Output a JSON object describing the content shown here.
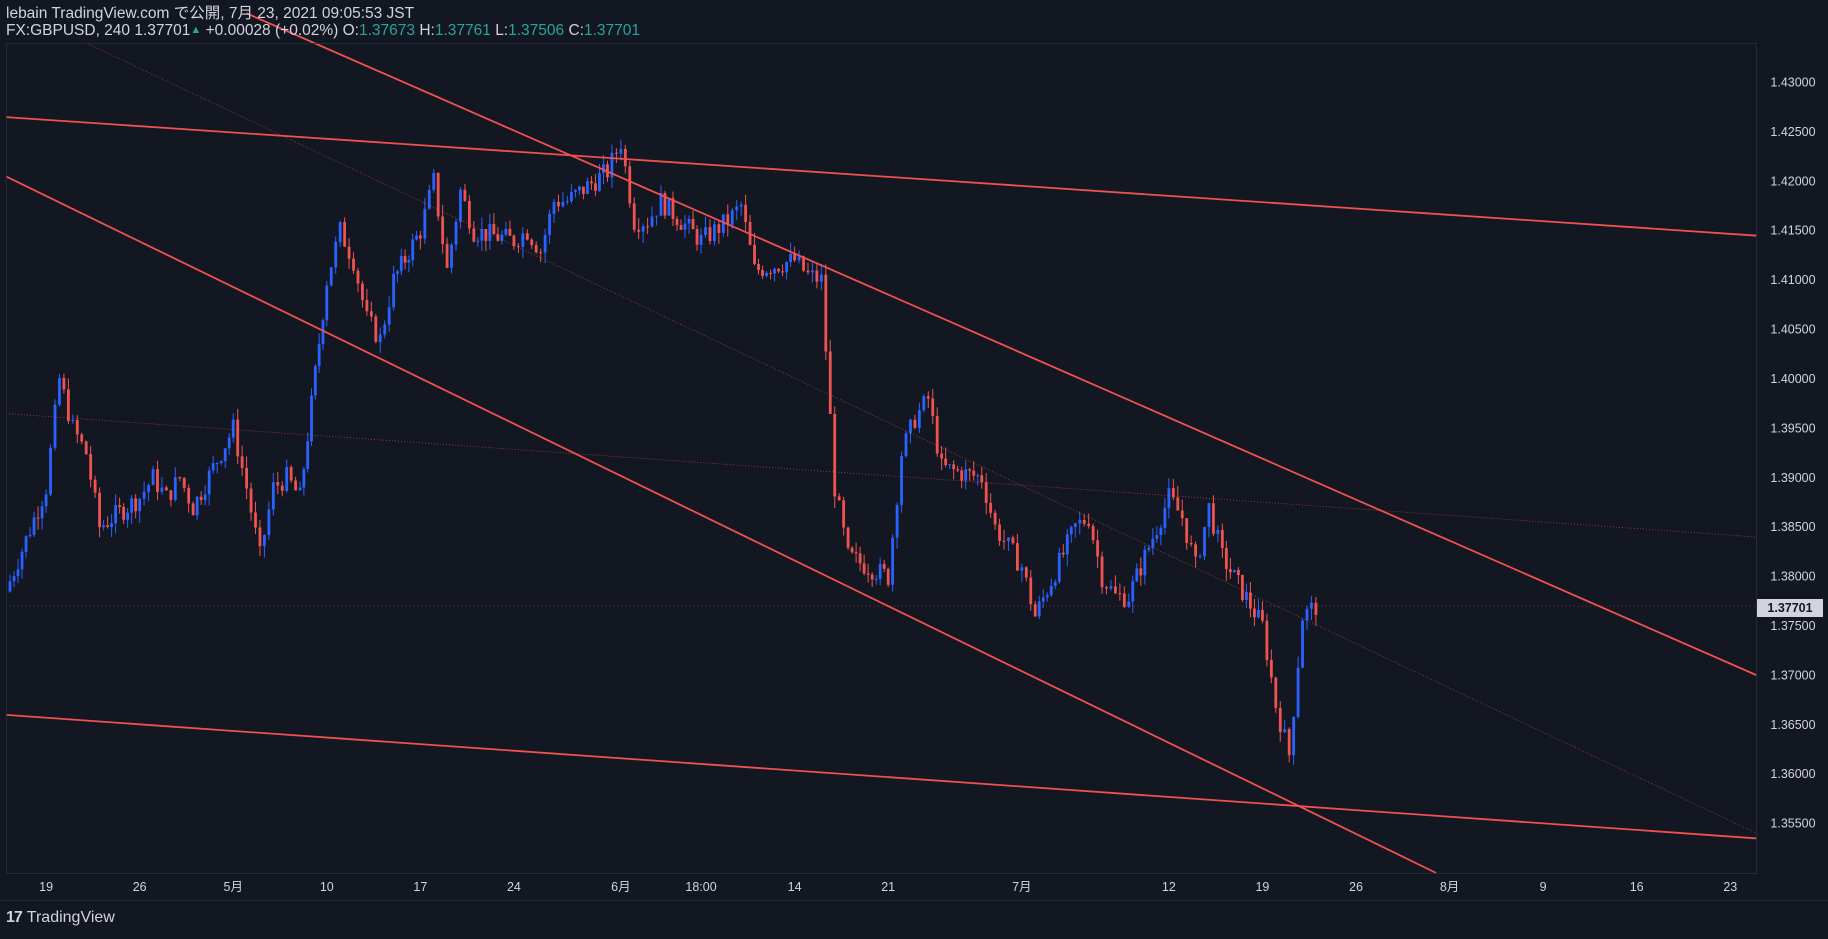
{
  "header": {
    "line1": "lebain TradingView.com で公開, 7月 23, 2021 09:05:53 JST",
    "symbol": "FX:GBPUSD, 240",
    "last": "1.37701",
    "change": "+0.00028 (+0.02%)",
    "o_label": "O:",
    "o_val": "1.37673",
    "h_label": "H:",
    "h_val": "1.37761",
    "l_label": "L:",
    "l_val": "1.37506",
    "c_label": "C:",
    "c_val": "1.37701"
  },
  "footer": {
    "brand": "TradingView",
    "logo_text": "17"
  },
  "colors": {
    "background": "#131722",
    "up": "#2962ff",
    "down": "#ef5350",
    "lines": "#f05050",
    "text": "#d1d4dc",
    "ohlc_value": "#26a69a"
  },
  "chart_data": {
    "type": "candlestick",
    "symbol": "FX:GBPUSD",
    "interval": "240",
    "ylim": [
      1.35,
      1.434
    ],
    "y_ticks": [
      "1.43000",
      "1.42500",
      "1.42000",
      "1.41500",
      "1.41000",
      "1.40500",
      "1.40000",
      "1.39500",
      "1.39000",
      "1.38500",
      "1.38000",
      "1.37500",
      "1.37000",
      "1.36500",
      "1.36000",
      "1.35500"
    ],
    "last_price_label": "1.37701",
    "x_ticks": [
      {
        "label": "19",
        "date": "2021-04-19"
      },
      {
        "label": "26",
        "date": "2021-04-26"
      },
      {
        "label": "5月",
        "date": "2021-05-03"
      },
      {
        "label": "10",
        "date": "2021-05-10"
      },
      {
        "label": "17",
        "date": "2021-05-17"
      },
      {
        "label": "24",
        "date": "2021-05-24"
      },
      {
        "label": "6月",
        "date": "2021-06-01"
      },
      {
        "label": "18:00",
        "date": "2021-06-07"
      },
      {
        "label": "14",
        "date": "2021-06-14"
      },
      {
        "label": "21",
        "date": "2021-06-21"
      },
      {
        "label": "7月",
        "date": "2021-07-01"
      },
      {
        "label": "12",
        "date": "2021-07-12"
      },
      {
        "label": "19",
        "date": "2021-07-19"
      },
      {
        "label": "26",
        "date": "2021-07-26"
      },
      {
        "label": "8月",
        "date": "2021-08-02"
      },
      {
        "label": "9",
        "date": "2021-08-09"
      },
      {
        "label": "16",
        "date": "2021-08-16"
      },
      {
        "label": "23",
        "date": "2021-08-23"
      }
    ],
    "close_path": [
      [
        "2021-04-16",
        1.3785
      ],
      [
        "2021-04-19",
        1.389
      ],
      [
        "2021-04-20",
        1.4
      ],
      [
        "2021-04-21",
        1.395
      ],
      [
        "2021-04-22",
        1.3925
      ],
      [
        "2021-04-23",
        1.385
      ],
      [
        "2021-04-26",
        1.388
      ],
      [
        "2021-04-27",
        1.39
      ],
      [
        "2021-04-28",
        1.388
      ],
      [
        "2021-04-29",
        1.39
      ],
      [
        "2021-04-30",
        1.387
      ],
      [
        "2021-05-03",
        1.395
      ],
      [
        "2021-05-04",
        1.389
      ],
      [
        "2021-05-05",
        1.382
      ],
      [
        "2021-05-06",
        1.389
      ],
      [
        "2021-05-07",
        1.39
      ],
      [
        "2021-05-08",
        1.388
      ],
      [
        "2021-05-10",
        1.41
      ],
      [
        "2021-05-11",
        1.415
      ],
      [
        "2021-05-12",
        1.412
      ],
      [
        "2021-05-13",
        1.406
      ],
      [
        "2021-05-14",
        1.404
      ],
      [
        "2021-05-15",
        1.41
      ],
      [
        "2021-05-17",
        1.415
      ],
      [
        "2021-05-18",
        1.42
      ],
      [
        "2021-05-19",
        1.411
      ],
      [
        "2021-05-20",
        1.419
      ],
      [
        "2021-05-21",
        1.415
      ],
      [
        "2021-05-24",
        1.414
      ],
      [
        "2021-05-25",
        1.415
      ],
      [
        "2021-05-26",
        1.413
      ],
      [
        "2021-05-27",
        1.418
      ],
      [
        "2021-05-28",
        1.418
      ],
      [
        "2021-05-31",
        1.421
      ],
      [
        "2021-06-01",
        1.424
      ],
      [
        "2021-06-02",
        1.416
      ],
      [
        "2021-06-03",
        1.416
      ],
      [
        "2021-06-04",
        1.418
      ],
      [
        "2021-06-07",
        1.414
      ],
      [
        "2021-06-08",
        1.415
      ],
      [
        "2021-06-09",
        1.416
      ],
      [
        "2021-06-10",
        1.4175
      ],
      [
        "2021-06-11",
        1.411
      ],
      [
        "2021-06-14",
        1.412
      ],
      [
        "2021-06-15",
        1.4105
      ],
      [
        "2021-06-16",
        1.41
      ],
      [
        "2021-06-17",
        1.389
      ],
      [
        "2021-06-18",
        1.382
      ],
      [
        "2021-06-21",
        1.38
      ],
      [
        "2021-06-22",
        1.3925
      ],
      [
        "2021-06-23",
        1.396
      ],
      [
        "2021-06-24",
        1.398
      ],
      [
        "2021-06-25",
        1.391
      ],
      [
        "2021-06-28",
        1.39
      ],
      [
        "2021-06-29",
        1.385
      ],
      [
        "2021-06-30",
        1.383
      ],
      [
        "2021-07-01",
        1.381
      ],
      [
        "2021-07-02",
        1.376
      ],
      [
        "2021-07-05",
        1.385
      ],
      [
        "2021-07-06",
        1.386
      ],
      [
        "2021-07-07",
        1.38
      ],
      [
        "2021-07-08",
        1.378
      ],
      [
        "2021-07-09",
        1.378
      ],
      [
        "2021-07-12",
        1.388
      ],
      [
        "2021-07-13",
        1.386
      ],
      [
        "2021-07-14",
        1.381
      ],
      [
        "2021-07-15",
        1.387
      ],
      [
        "2021-07-16",
        1.382
      ],
      [
        "2021-07-19",
        1.375
      ],
      [
        "2021-07-20",
        1.367
      ],
      [
        "2021-07-21",
        1.362
      ],
      [
        "2021-07-22",
        1.376
      ],
      [
        "2021-07-23",
        1.377
      ]
    ],
    "lines": [
      {
        "name": "upper-parallel",
        "from": [
          "2021-04-16",
          1.4265
        ],
        "to": [
          "2021-08-25",
          1.4145
        ]
      },
      {
        "name": "lower-parallel",
        "from": [
          "2021-04-16",
          1.366
        ],
        "to": [
          "2021-08-25",
          1.3535
        ]
      },
      {
        "name": "channel-top",
        "from": [
          "2021-05-04",
          1.437
        ],
        "to": [
          "2021-08-25",
          1.37
        ]
      },
      {
        "name": "channel-bottom",
        "from": [
          "2021-04-16",
          1.4205
        ],
        "to": [
          "2021-08-01",
          1.35
        ]
      },
      {
        "name": "dotted-mid-1",
        "from": [
          "2021-04-16",
          1.3965
        ],
        "to": [
          "2021-08-25",
          1.384
        ],
        "style": "dotted"
      },
      {
        "name": "dotted-mid-2",
        "from": [
          "2021-04-22",
          1.434
        ],
        "to": [
          "2021-08-25",
          1.354
        ],
        "style": "dotted"
      }
    ]
  }
}
